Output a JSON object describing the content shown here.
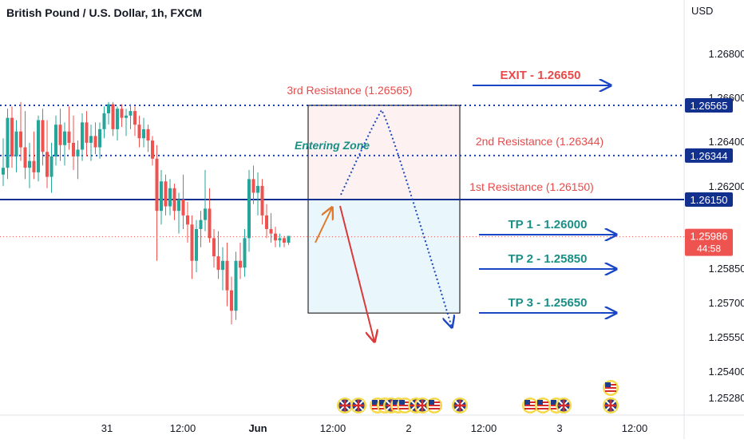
{
  "header": {
    "title": "British Pound / U.S. Dollar, 1h, FXCM",
    "currency": "USD"
  },
  "colors": {
    "up": "#26a69a",
    "down": "#ef5350",
    "level_line": "#1a3fb5",
    "main_line": "#12318f",
    "resistance_text": "#e84a4a",
    "tp_text": "#1a8f86",
    "arrow_blue": "#1a46c5",
    "zone_top": "#fdf1f1",
    "zone_bottom": "#e9f6fb",
    "bull_arrow": "#e07a2a",
    "bear_arrow": "#d93a3a",
    "label_bg": "#12318f",
    "price_bg": "#ef5350"
  },
  "chart_data": {
    "type": "candlestick",
    "title": "British Pound / U.S. Dollar, 1h, FXCM",
    "y_axis": {
      "unit": "USD",
      "ticks": [
        "1.26800",
        "1.26600",
        "1.26400",
        "1.26200",
        "1.25850",
        "1.25700",
        "1.25550",
        "1.25400",
        "1.25280"
      ]
    },
    "x_axis": {
      "ticks": [
        "31",
        "12:00",
        "Jun",
        "12:00",
        "2",
        "12:00",
        "3",
        "12:00"
      ]
    },
    "price_labels": [
      {
        "label": "1.26565",
        "style": "line"
      },
      {
        "label": "1.26344",
        "style": "line"
      },
      {
        "label": "1.26150",
        "style": "line"
      }
    ],
    "current_price": {
      "value": "1.25986",
      "countdown": "44:58"
    },
    "levels": [
      {
        "name": "3rd Resistance",
        "value": 1.26565,
        "text": "3rd Resistance (1.26565)"
      },
      {
        "name": "2nd Resistance",
        "value": 1.26344,
        "text": "2nd Resistance (1.26344)"
      },
      {
        "name": "1st Resistance",
        "value": 1.2615,
        "text": "1st Resistance (1.26150)"
      }
    ],
    "targets": [
      {
        "text": "EXIT - 1.26650",
        "value": 1.2665,
        "kind": "exit"
      },
      {
        "text": "TP 1 - 1.26000",
        "value": 1.26,
        "kind": "tp"
      },
      {
        "text": "TP 2 - 1.25850",
        "value": 1.2585,
        "kind": "tp"
      },
      {
        "text": "TP 3 - 1.25650",
        "value": 1.2565,
        "kind": "tp"
      }
    ],
    "zone": {
      "label": "Entering Zone",
      "top": 1.26565,
      "mid": 1.2615,
      "bottom": 1.2565
    },
    "candles": [
      {
        "o": 1.2626,
        "h": 1.2642,
        "l": 1.2621,
        "c": 1.2629
      },
      {
        "o": 1.2629,
        "h": 1.2655,
        "l": 1.2624,
        "c": 1.2651
      },
      {
        "o": 1.2651,
        "h": 1.2656,
        "l": 1.2629,
        "c": 1.2634
      },
      {
        "o": 1.2634,
        "h": 1.265,
        "l": 1.2627,
        "c": 1.2645
      },
      {
        "o": 1.2645,
        "h": 1.2658,
        "l": 1.2632,
        "c": 1.2638
      },
      {
        "o": 1.2638,
        "h": 1.2654,
        "l": 1.2624,
        "c": 1.2629
      },
      {
        "o": 1.2629,
        "h": 1.264,
        "l": 1.262,
        "c": 1.2632
      },
      {
        "o": 1.2632,
        "h": 1.2645,
        "l": 1.2624,
        "c": 1.2627
      },
      {
        "o": 1.2627,
        "h": 1.2652,
        "l": 1.2623,
        "c": 1.265
      },
      {
        "o": 1.265,
        "h": 1.2655,
        "l": 1.263,
        "c": 1.2636
      },
      {
        "o": 1.2636,
        "h": 1.265,
        "l": 1.262,
        "c": 1.2625
      },
      {
        "o": 1.2625,
        "h": 1.264,
        "l": 1.2618,
        "c": 1.2634
      },
      {
        "o": 1.2634,
        "h": 1.2652,
        "l": 1.263,
        "c": 1.2648
      },
      {
        "o": 1.2648,
        "h": 1.2655,
        "l": 1.2632,
        "c": 1.2639
      },
      {
        "o": 1.2639,
        "h": 1.2649,
        "l": 1.263,
        "c": 1.2645
      },
      {
        "o": 1.2645,
        "h": 1.2656,
        "l": 1.2637,
        "c": 1.264
      },
      {
        "o": 1.264,
        "h": 1.2652,
        "l": 1.2628,
        "c": 1.2634
      },
      {
        "o": 1.2634,
        "h": 1.2641,
        "l": 1.2624,
        "c": 1.2637
      },
      {
        "o": 1.2637,
        "h": 1.2653,
        "l": 1.2632,
        "c": 1.2649
      },
      {
        "o": 1.2649,
        "h": 1.2654,
        "l": 1.2634,
        "c": 1.264
      },
      {
        "o": 1.264,
        "h": 1.2648,
        "l": 1.2632,
        "c": 1.2643
      },
      {
        "o": 1.2643,
        "h": 1.2649,
        "l": 1.2635,
        "c": 1.2638
      },
      {
        "o": 1.2638,
        "h": 1.2649,
        "l": 1.2633,
        "c": 1.2646
      },
      {
        "o": 1.2646,
        "h": 1.2656,
        "l": 1.2642,
        "c": 1.2653
      },
      {
        "o": 1.2653,
        "h": 1.2658,
        "l": 1.2648,
        "c": 1.2657
      },
      {
        "o": 1.2657,
        "h": 1.2658,
        "l": 1.2643,
        "c": 1.2646
      },
      {
        "o": 1.2646,
        "h": 1.2656,
        "l": 1.2641,
        "c": 1.2655
      },
      {
        "o": 1.2655,
        "h": 1.2657,
        "l": 1.2647,
        "c": 1.2651
      },
      {
        "o": 1.2651,
        "h": 1.2655,
        "l": 1.2643,
        "c": 1.2652
      },
      {
        "o": 1.2652,
        "h": 1.2657,
        "l": 1.2646,
        "c": 1.2654
      },
      {
        "o": 1.2654,
        "h": 1.2656,
        "l": 1.2643,
        "c": 1.2648
      },
      {
        "o": 1.2648,
        "h": 1.2652,
        "l": 1.2638,
        "c": 1.2642
      },
      {
        "o": 1.2642,
        "h": 1.2651,
        "l": 1.2638,
        "c": 1.2646
      },
      {
        "o": 1.2646,
        "h": 1.2648,
        "l": 1.2636,
        "c": 1.2641
      },
      {
        "o": 1.2641,
        "h": 1.2643,
        "l": 1.263,
        "c": 1.2633
      },
      {
        "o": 1.2633,
        "h": 1.2639,
        "l": 1.2588,
        "c": 1.261
      },
      {
        "o": 1.261,
        "h": 1.2628,
        "l": 1.2604,
        "c": 1.2623
      },
      {
        "o": 1.2623,
        "h": 1.2626,
        "l": 1.2608,
        "c": 1.2612
      },
      {
        "o": 1.2612,
        "h": 1.2624,
        "l": 1.2608,
        "c": 1.262
      },
      {
        "o": 1.262,
        "h": 1.2622,
        "l": 1.2606,
        "c": 1.261
      },
      {
        "o": 1.261,
        "h": 1.2618,
        "l": 1.26,
        "c": 1.2615
      },
      {
        "o": 1.2615,
        "h": 1.2626,
        "l": 1.2602,
        "c": 1.2608
      },
      {
        "o": 1.2608,
        "h": 1.2614,
        "l": 1.2596,
        "c": 1.2604
      },
      {
        "o": 1.2604,
        "h": 1.2608,
        "l": 1.258,
        "c": 1.2588
      },
      {
        "o": 1.2588,
        "h": 1.2606,
        "l": 1.2583,
        "c": 1.2602
      },
      {
        "o": 1.2602,
        "h": 1.261,
        "l": 1.2594,
        "c": 1.2606
      },
      {
        "o": 1.2606,
        "h": 1.2628,
        "l": 1.2601,
        "c": 1.2611
      },
      {
        "o": 1.2611,
        "h": 1.262,
        "l": 1.2596,
        "c": 1.2598
      },
      {
        "o": 1.2598,
        "h": 1.2602,
        "l": 1.2585,
        "c": 1.259
      },
      {
        "o": 1.259,
        "h": 1.2601,
        "l": 1.258,
        "c": 1.2584
      },
      {
        "o": 1.2584,
        "h": 1.2594,
        "l": 1.2575,
        "c": 1.2588
      },
      {
        "o": 1.2588,
        "h": 1.2596,
        "l": 1.2568,
        "c": 1.2575
      },
      {
        "o": 1.2575,
        "h": 1.2581,
        "l": 1.256,
        "c": 1.2566
      },
      {
        "o": 1.2566,
        "h": 1.2592,
        "l": 1.2562,
        "c": 1.2588
      },
      {
        "o": 1.2588,
        "h": 1.2596,
        "l": 1.258,
        "c": 1.2585
      },
      {
        "o": 1.2585,
        "h": 1.2602,
        "l": 1.2581,
        "c": 1.2598
      },
      {
        "o": 1.2598,
        "h": 1.2628,
        "l": 1.2592,
        "c": 1.2624
      },
      {
        "o": 1.2624,
        "h": 1.263,
        "l": 1.2613,
        "c": 1.2618
      },
      {
        "o": 1.2618,
        "h": 1.2627,
        "l": 1.2608,
        "c": 1.2621
      },
      {
        "o": 1.2621,
        "h": 1.2624,
        "l": 1.2604,
        "c": 1.2608
      },
      {
        "o": 1.2608,
        "h": 1.2613,
        "l": 1.2598,
        "c": 1.2602
      },
      {
        "o": 1.2602,
        "h": 1.2609,
        "l": 1.2596,
        "c": 1.26
      },
      {
        "o": 1.26,
        "h": 1.2603,
        "l": 1.2594,
        "c": 1.2597
      },
      {
        "o": 1.2597,
        "h": 1.26,
        "l": 1.2594,
        "c": 1.2598
      },
      {
        "o": 1.2598,
        "h": 1.2599,
        "l": 1.2594,
        "c": 1.2596
      },
      {
        "o": 1.2596,
        "h": 1.2599,
        "l": 1.2595,
        "c": 1.2599
      }
    ],
    "events": [
      {
        "icon": "uk-flag-icon",
        "slot": 0
      },
      {
        "icon": "uk-flag-icon",
        "slot": 1
      },
      {
        "icon": "us-flag-icon",
        "slot": 2
      },
      {
        "icon": "us-flag-icon",
        "slot": 3
      },
      {
        "icon": "uk-flag-icon",
        "slot": 4
      },
      {
        "icon": "us-flag-icon",
        "slot": 5
      },
      {
        "icon": "us-flag-icon",
        "slot": 6
      },
      {
        "icon": "uk-flag-icon",
        "slot": 7
      },
      {
        "icon": "uk-flag-icon",
        "slot": 8
      },
      {
        "icon": "us-flag-icon",
        "slot": 9
      },
      {
        "icon": "uk-flag-icon",
        "slot": 10
      },
      {
        "icon": "us-flag-icon",
        "slot": 11
      },
      {
        "icon": "us-flag-icon",
        "slot": 12
      },
      {
        "icon": "us-flag-icon",
        "slot": 13
      },
      {
        "icon": "uk-flag-icon",
        "slot": 14
      }
    ]
  }
}
